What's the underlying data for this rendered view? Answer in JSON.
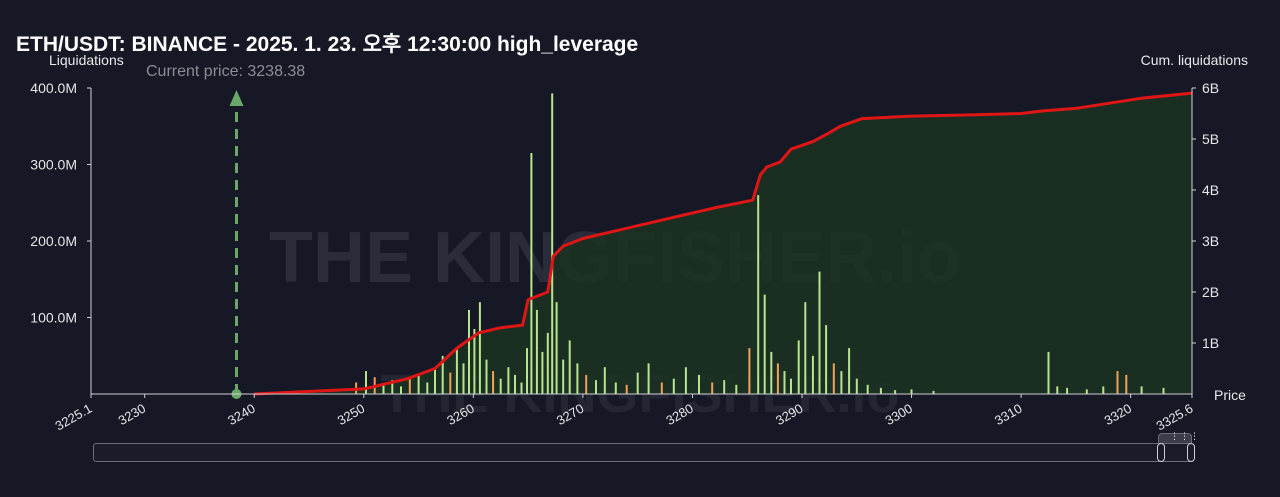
{
  "title": "ETH/USDT: BINANCE - 2025. 1. 23. 오후 12:30:00 high_leverage",
  "watermark": "THE KINGFISHER.io",
  "current_price_label": "Current price: 3238.38",
  "colors": {
    "background": "#161826",
    "bar_green": "#b7e58f",
    "bar_orange": "#f0a15a",
    "cum_line": "#e01515",
    "cum_area": "#1b3322",
    "marker": "#6aa86a"
  },
  "chart_data": {
    "type": "bar",
    "title": "ETH/USDT: BINANCE - 2025. 1. 23. 오후 12:30:00 high_leverage",
    "xlabel": "Price",
    "ylabel": "Liquidations",
    "y2label": "Cum. liquidations",
    "xlim": [
      3225.1,
      3325.6
    ],
    "ylim": [
      0,
      400000000
    ],
    "y2lim": [
      0,
      6000000000
    ],
    "x_ticks": [
      "3225.1",
      "3230",
      "3240",
      "3250",
      "3260",
      "3270",
      "3280",
      "3290",
      "3300",
      "3310",
      "3320",
      "3325.6"
    ],
    "y_ticks": [
      "400.0M",
      "300.0M",
      "200.0M",
      "100.0M"
    ],
    "y2_ticks": [
      "6B",
      "5B",
      "4B",
      "3B",
      "2B",
      "1B"
    ],
    "current_price": 3238.38,
    "series": [
      {
        "type": "bar",
        "x": [
          3249.3,
          3250.2,
          3251.0,
          3251.8,
          3252.6,
          3253.4,
          3254.2,
          3255.0,
          3255.8,
          3256.5,
          3257.2,
          3257.9,
          3258.5,
          3259.1,
          3259.6,
          3260.1,
          3260.6,
          3261.2,
          3261.8,
          3262.5,
          3263.2,
          3263.8,
          3264.4,
          3264.9,
          3265.3,
          3265.8,
          3266.3,
          3266.8,
          3267.2,
          3267.6,
          3268.2,
          3268.8,
          3269.5,
          3270.3,
          3271.2,
          3272.0,
          3273.0,
          3274.0,
          3275.0,
          3276.0,
          3277.2,
          3278.3,
          3279.4,
          3280.6,
          3281.8,
          3282.9,
          3284.0,
          3285.2,
          3286.0,
          3286.6,
          3287.2,
          3287.8,
          3288.4,
          3289.0,
          3289.7,
          3290.3,
          3291.0,
          3291.6,
          3292.2,
          3292.9,
          3293.6,
          3294.3,
          3295.0,
          3296.0,
          3297.2,
          3298.5,
          3300.0,
          3302.0,
          3312.5,
          3313.3,
          3314.2,
          3316.0,
          3317.5,
          3318.8,
          3319.6,
          3321.0,
          3323.0
        ],
        "values": [
          15000000,
          30000000,
          22000000,
          12000000,
          18000000,
          10000000,
          20000000,
          25000000,
          15000000,
          35000000,
          50000000,
          28000000,
          60000000,
          40000000,
          110000000,
          85000000,
          120000000,
          45000000,
          30000000,
          20000000,
          35000000,
          25000000,
          15000000,
          60000000,
          315000000,
          110000000,
          55000000,
          80000000,
          393000000,
          120000000,
          45000000,
          70000000,
          40000000,
          25000000,
          18000000,
          35000000,
          15000000,
          12000000,
          28000000,
          40000000,
          15000000,
          20000000,
          35000000,
          25000000,
          15000000,
          18000000,
          12000000,
          60000000,
          260000000,
          130000000,
          55000000,
          40000000,
          30000000,
          20000000,
          70000000,
          120000000,
          50000000,
          160000000,
          90000000,
          40000000,
          30000000,
          60000000,
          20000000,
          12000000,
          8000000,
          5000000,
          6000000,
          4000000,
          55000000,
          10000000,
          8000000,
          6000000,
          10000000,
          30000000,
          25000000,
          10000000,
          8000000
        ],
        "colors": [
          "orange",
          "green",
          "orange",
          "green",
          "green",
          "green",
          "orange",
          "green",
          "green",
          "green",
          "green",
          "orange",
          "green",
          "green",
          "green",
          "green",
          "green",
          "green",
          "orange",
          "green",
          "green",
          "green",
          "green",
          "green",
          "green",
          "green",
          "green",
          "green",
          "green",
          "green",
          "green",
          "green",
          "green",
          "orange",
          "green",
          "green",
          "green",
          "orange",
          "green",
          "green",
          "orange",
          "green",
          "green",
          "green",
          "orange",
          "green",
          "green",
          "orange",
          "green",
          "green",
          "green",
          "orange",
          "green",
          "green",
          "green",
          "green",
          "green",
          "green",
          "green",
          "orange",
          "green",
          "green",
          "green",
          "green",
          "green",
          "green",
          "green",
          "green",
          "green",
          "green",
          "green",
          "green",
          "green",
          "orange",
          "orange",
          "green",
          "green"
        ]
      },
      {
        "type": "line",
        "name": "Cum. liquidations",
        "x": [
          3240.0,
          3250.0,
          3254.0,
          3256.5,
          3258.5,
          3260.5,
          3262.5,
          3264.5,
          3265.0,
          3266.8,
          3267.3,
          3268.2,
          3270.0,
          3273.0,
          3276.0,
          3279.0,
          3282.0,
          3285.5,
          3286.2,
          3286.8,
          3288.0,
          3289.0,
          3291.0,
          3292.3,
          3293.5,
          3295.5,
          3300.0,
          3305.0,
          3310.0,
          3312.0,
          3315.0,
          3318.0,
          3321.0,
          3325.6
        ],
        "values": [
          0,
          100000000,
          300000000,
          500000000,
          900000000,
          1200000000,
          1300000000,
          1350000000,
          1850000000,
          2000000000,
          2700000000,
          2900000000,
          3050000000,
          3200000000,
          3350000000,
          3500000000,
          3650000000,
          3800000000,
          4300000000,
          4450000000,
          4550000000,
          4800000000,
          4950000000,
          5100000000,
          5250000000,
          5400000000,
          5450000000,
          5470000000,
          5500000000,
          5550000000,
          5600000000,
          5700000000,
          5800000000,
          5900000000
        ]
      }
    ]
  }
}
